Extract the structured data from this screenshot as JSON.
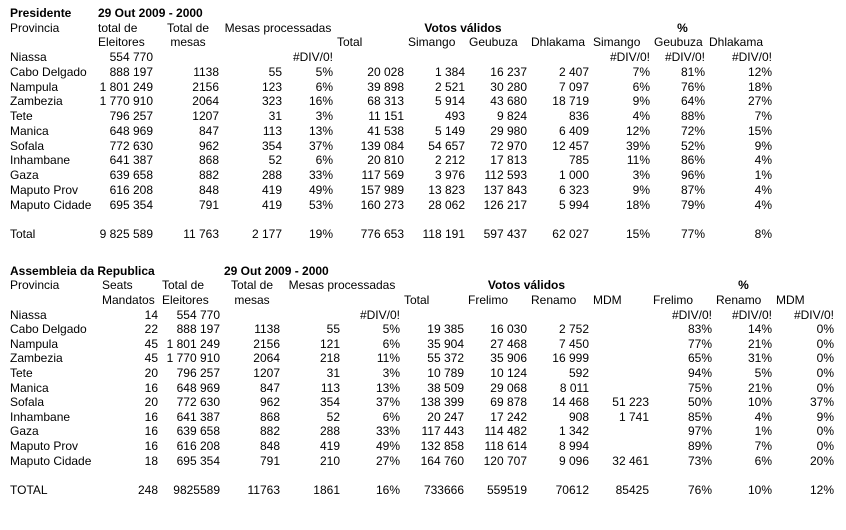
{
  "page": {
    "background": "#ffffff",
    "text_color": "#000000"
  },
  "president_table": {
    "title": "Presidente",
    "date_label": "29 Out 2009 - 2000",
    "headers": {
      "provincia": "Provincia",
      "eleitores_line1": "total de",
      "eleitores_line2": "Eleitores",
      "mesas_line1": "Total de",
      "mesas_line2": "mesas",
      "processadas": "Mesas processadas",
      "votos_validos": "Votos válidos",
      "percent": "%",
      "total": "Total",
      "candidates": [
        "Simango",
        "Geubuza",
        "Dhlakama"
      ]
    },
    "rows": [
      [
        "Niassa",
        "554 770",
        "",
        "",
        "#DIV/0!",
        "",
        "",
        "",
        "",
        "#DIV/0!",
        "#DIV/0!",
        "#DIV/0!"
      ],
      [
        "Cabo Delgado",
        "888 197",
        "1138",
        "55",
        "5%",
        "20 028",
        "1 384",
        "16 237",
        "2 407",
        "7%",
        "81%",
        "12%"
      ],
      [
        "Nampula",
        "1 801 249",
        "2156",
        "123",
        "6%",
        "39 898",
        "2 521",
        "30 280",
        "7 097",
        "6%",
        "76%",
        "18%"
      ],
      [
        "Zambezia",
        "1 770 910",
        "2064",
        "323",
        "16%",
        "68 313",
        "5 914",
        "43 680",
        "18 719",
        "9%",
        "64%",
        "27%"
      ],
      [
        "Tete",
        "796 257",
        "1207",
        "31",
        "3%",
        "11 151",
        "493",
        "9 824",
        "836",
        "4%",
        "88%",
        "7%"
      ],
      [
        "Manica",
        "648 969",
        "847",
        "113",
        "13%",
        "41 538",
        "5 149",
        "29 980",
        "6 409",
        "12%",
        "72%",
        "15%"
      ],
      [
        "Sofala",
        "772 630",
        "962",
        "354",
        "37%",
        "139 084",
        "54 657",
        "72 970",
        "12 457",
        "39%",
        "52%",
        "9%"
      ],
      [
        "Inhambane",
        "641 387",
        "868",
        "52",
        "6%",
        "20 810",
        "2 212",
        "17 813",
        "785",
        "11%",
        "86%",
        "4%"
      ],
      [
        "Gaza",
        "639 658",
        "882",
        "288",
        "33%",
        "117 569",
        "3 976",
        "112 593",
        "1 000",
        "3%",
        "96%",
        "1%"
      ],
      [
        "Maputo Prov",
        "616 208",
        "848",
        "419",
        "49%",
        "157 989",
        "13 823",
        "137 843",
        "6 323",
        "9%",
        "87%",
        "4%"
      ],
      [
        "Maputo Cidade",
        "695 354",
        "791",
        "419",
        "53%",
        "160 273",
        "28 062",
        "126 217",
        "5 994",
        "18%",
        "79%",
        "4%"
      ]
    ],
    "total_row": [
      "Total",
      "9 825 589",
      "11 763",
      "2 177",
      "19%",
      "776 653",
      "118 191",
      "597 437",
      "62 027",
      "15%",
      "77%",
      "8%"
    ]
  },
  "assembly_table": {
    "title": "Assembleia da Republica",
    "date_label": "29 Out 2009 - 2000",
    "headers": {
      "provincia": "Provincia",
      "seats_line1": "Seats",
      "seats_line2": "Mandatos",
      "eleitores_line1": "Total de",
      "eleitores_line2": "Eleitores",
      "mesas_line1": "Total de",
      "mesas_line2": "mesas",
      "processadas": "Mesas processadas",
      "votos_validos": "Votos válidos",
      "percent": "%",
      "total": "Total",
      "parties": [
        "Frelimo",
        "Renamo",
        "MDM"
      ]
    },
    "rows": [
      [
        "Niassa",
        "14",
        "554 770",
        "",
        "",
        "#DIV/0!",
        "",
        "",
        "",
        "",
        "#DIV/0!",
        "#DIV/0!",
        "#DIV/0!"
      ],
      [
        "Cabo Delgado",
        "22",
        "888 197",
        "1138",
        "55",
        "5%",
        "19 385",
        "16 030",
        "2 752",
        "",
        "83%",
        "14%",
        "0%"
      ],
      [
        "Nampula",
        "45",
        "1 801 249",
        "2156",
        "121",
        "6%",
        "35 904",
        "27 468",
        "7 450",
        "",
        "77%",
        "21%",
        "0%"
      ],
      [
        "Zambezia",
        "45",
        "1 770 910",
        "2064",
        "218",
        "11%",
        "55 372",
        "35 906",
        "16 999",
        "",
        "65%",
        "31%",
        "0%"
      ],
      [
        "Tete",
        "20",
        "796 257",
        "1207",
        "31",
        "3%",
        "10 789",
        "10 124",
        "592",
        "",
        "94%",
        "5%",
        "0%"
      ],
      [
        "Manica",
        "16",
        "648 969",
        "847",
        "113",
        "13%",
        "38 509",
        "29 068",
        "8 011",
        "",
        "75%",
        "21%",
        "0%"
      ],
      [
        "Sofala",
        "20",
        "772 630",
        "962",
        "354",
        "37%",
        "138 399",
        "69 878",
        "14 468",
        "51 223",
        "50%",
        "10%",
        "37%"
      ],
      [
        "Inhambane",
        "16",
        "641 387",
        "868",
        "52",
        "6%",
        "20 247",
        "17 242",
        "908",
        "1 741",
        "85%",
        "4%",
        "9%"
      ],
      [
        "Gaza",
        "16",
        "639 658",
        "882",
        "288",
        "33%",
        "117 443",
        "114 482",
        "1 342",
        "",
        "97%",
        "1%",
        "0%"
      ],
      [
        "Maputo Prov",
        "16",
        "616 208",
        "848",
        "419",
        "49%",
        "132 858",
        "118 614",
        "8 994",
        "",
        "89%",
        "7%",
        "0%"
      ],
      [
        "Maputo Cidade",
        "18",
        "695 354",
        "791",
        "210",
        "27%",
        "164 760",
        "120 707",
        "9 096",
        "32 461",
        "73%",
        "6%",
        "20%"
      ]
    ],
    "total_row": [
      "TOTAL",
      "248",
      "9825589",
      "11763",
      "1861",
      "16%",
      "733666",
      "559519",
      "70612",
      "85425",
      "76%",
      "10%",
      "12%"
    ]
  }
}
